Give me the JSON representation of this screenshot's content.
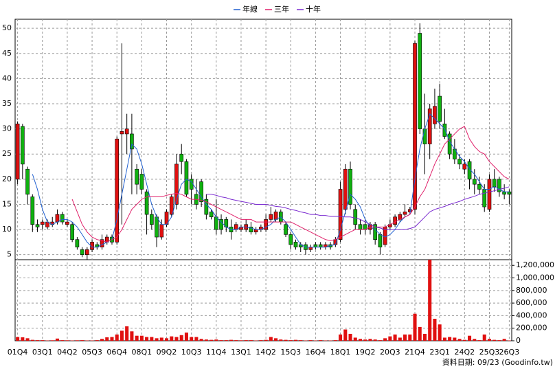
{
  "chart_data": {
    "type": "candlestick",
    "categories": [
      "01Q4",
      null,
      null,
      null,
      null,
      "03Q1",
      null,
      null,
      null,
      null,
      "04Q2",
      null,
      null,
      null,
      null,
      "05Q3",
      null,
      null,
      null,
      null,
      "06Q4",
      null,
      null,
      null,
      null,
      "08Q1",
      null,
      null,
      null,
      null,
      "09Q2",
      null,
      null,
      null,
      null,
      "10Q3",
      null,
      null,
      null,
      null,
      "11Q4",
      null,
      null,
      null,
      null,
      "13Q1",
      null,
      null,
      null,
      null,
      "14Q2",
      null,
      null,
      null,
      null,
      "15Q3",
      null,
      null,
      null,
      null,
      "16Q4",
      null,
      null,
      null,
      null,
      "18Q1",
      null,
      null,
      null,
      null,
      "19Q2",
      null,
      null,
      null,
      null,
      "20Q3",
      null,
      null,
      null,
      null,
      "21Q4",
      null,
      null,
      null,
      null,
      "23Q1",
      null,
      null,
      null,
      null,
      "24Q2",
      null,
      null,
      null,
      null,
      "25Q3",
      null,
      null,
      null,
      "26Q3"
    ],
    "open": [
      20,
      30.5,
      22,
      16.5,
      11,
      11,
      10.5,
      11,
      11.5,
      13,
      11,
      11,
      8,
      6,
      5,
      6,
      7,
      6.5,
      7.5,
      8.5,
      7.5,
      29,
      29,
      29,
      22,
      21,
      17.5,
      13,
      12.5,
      8.5,
      11,
      13,
      15,
      25,
      23.5,
      20,
      17,
      19.5,
      16,
      13.5,
      12.5,
      12,
      12,
      10.5,
      10,
      10,
      10,
      10.5,
      9.5,
      10,
      10,
      12,
      12,
      13.5,
      11,
      9,
      7.5,
      7,
      7,
      6,
      7,
      7,
      6.5,
      7,
      7,
      8,
      14,
      22,
      14,
      11,
      11,
      10,
      11,
      9,
      7,
      10.5,
      11,
      12,
      13,
      13.5,
      14,
      49,
      30,
      27,
      31,
      36.5,
      31,
      29,
      26,
      24,
      22,
      23.5,
      20,
      19,
      18,
      14,
      20,
      20,
      17.5,
      17.5
    ],
    "high": [
      31.5,
      31,
      22.5,
      17,
      12,
      12,
      12,
      12.5,
      14,
      13.5,
      12,
      11.5,
      8.5,
      6.5,
      6.5,
      8,
      7.5,
      9,
      9,
      9,
      28.5,
      47,
      33,
      33,
      23,
      22,
      18,
      14,
      13,
      12,
      14,
      17,
      25,
      27,
      24,
      21,
      20,
      20,
      17,
      14,
      16,
      13,
      12.5,
      12,
      11.5,
      11,
      12,
      11.5,
      10.5,
      11,
      13,
      14.5,
      14,
      14,
      11.5,
      9.5,
      8,
      7.5,
      7.5,
      7,
      7.5,
      7.5,
      7.5,
      7.5,
      8.5,
      19.5,
      23,
      23.5,
      15,
      12,
      12,
      11.5,
      11.5,
      9.5,
      11,
      12,
      13,
      13.5,
      15,
      14.5,
      47.5,
      51,
      37,
      35,
      38,
      39,
      34,
      29.5,
      28,
      25,
      24,
      24,
      22,
      20.5,
      19,
      21,
      22,
      20.5,
      19,
      18
    ],
    "low": [
      19,
      20,
      15,
      9.5,
      9.5,
      10,
      10,
      10.5,
      11,
      11,
      10.5,
      7.5,
      6,
      4.5,
      4,
      5.5,
      6,
      6,
      7,
      7,
      7,
      11,
      25,
      17,
      17,
      17,
      9,
      10,
      6.5,
      8,
      10.5,
      12.5,
      14,
      21,
      16.5,
      15,
      14,
      14.5,
      12,
      12,
      9,
      9,
      9.5,
      8,
      9.5,
      9.5,
      9.5,
      9,
      9,
      9.5,
      9.5,
      11.5,
      11.5,
      11,
      8.5,
      6,
      6,
      5.5,
      5,
      5.5,
      6,
      6,
      6,
      6,
      6.5,
      7.5,
      13,
      14,
      10,
      9,
      9,
      9,
      7,
      5,
      6.5,
      10,
      10.5,
      11.5,
      12.5,
      13,
      13,
      29,
      21,
      24,
      30,
      30,
      28,
      24,
      23,
      22,
      21,
      18,
      17,
      17,
      13.5,
      13.5,
      17.5,
      16.5,
      16,
      15
    ],
    "close": [
      31,
      23,
      17,
      11,
      10.5,
      11.5,
      11.5,
      11.5,
      13,
      11.5,
      11.5,
      8,
      6.5,
      5,
      6,
      7.5,
      6.5,
      8,
      8.5,
      7.5,
      28,
      29.5,
      30,
      26,
      19,
      18,
      13,
      11,
      8.5,
      11,
      13.5,
      16.5,
      23,
      23.5,
      17,
      18,
      15,
      15.5,
      13,
      12.5,
      10,
      10,
      10.5,
      9.5,
      11,
      10.5,
      11,
      9.5,
      10,
      10.5,
      12,
      13,
      13.5,
      11.5,
      9,
      7,
      6.5,
      6.5,
      6,
      6.5,
      6.5,
      6.5,
      7,
      6.5,
      8,
      18,
      22,
      15,
      11,
      10,
      10,
      11,
      8,
      6.5,
      10.5,
      11,
      12.5,
      13,
      13.5,
      14,
      47,
      30,
      27,
      34,
      34.5,
      31.5,
      28.5,
      25,
      24,
      23,
      23,
      20,
      19,
      18,
      14.5,
      20,
      18.5,
      17.5,
      17,
      17
    ],
    "up_color": "#e01010",
    "down_color": "#10b010",
    "lines": [
      {
        "name": "年線",
        "color": "#1f5fd0",
        "values": [
          null,
          null,
          null,
          21,
          18,
          14,
          11.5,
          11,
          11.5,
          12,
          12,
          11.5,
          10.5,
          9,
          7.5,
          6.5,
          6.5,
          7,
          7.5,
          8,
          12,
          17,
          22,
          27,
          26,
          23,
          19,
          15,
          12.5,
          11,
          11,
          12.5,
          16,
          19,
          20,
          19.5,
          18,
          16.5,
          15,
          14,
          12.5,
          11.5,
          10.5,
          10,
          10,
          10.5,
          10.5,
          10.3,
          10,
          10,
          10.5,
          11,
          12,
          12.5,
          11.5,
          10,
          8.5,
          7,
          6.5,
          6.5,
          6.5,
          6.5,
          6.5,
          6.8,
          7,
          10,
          13.5,
          17,
          16,
          14.5,
          12,
          10.5,
          10,
          9,
          8.5,
          9,
          10,
          11.5,
          12.5,
          13,
          20,
          26,
          30,
          33,
          32,
          31,
          30,
          27.5,
          26,
          24.5,
          23.5,
          22,
          21,
          19.5,
          18,
          18,
          18.5,
          18,
          17.5,
          17.5
        ]
      },
      {
        "name": "三年",
        "color": "#e0206a",
        "values": [
          null,
          null,
          null,
          null,
          null,
          null,
          null,
          null,
          null,
          null,
          null,
          16,
          13.5,
          11,
          9.5,
          8.5,
          8,
          7.8,
          7.5,
          8,
          8.5,
          10,
          12,
          14,
          15,
          16,
          16.5,
          16.5,
          16.5,
          16.5,
          16.8,
          17,
          17.2,
          17,
          16.5,
          16,
          16,
          15.8,
          15.5,
          15,
          14.5,
          14,
          13.5,
          13,
          12.5,
          12,
          12,
          12,
          11.5,
          11.5,
          11.5,
          11.5,
          11.5,
          11.5,
          11.5,
          11.5,
          11,
          10.5,
          10,
          9.5,
          9,
          8.5,
          8,
          7.8,
          8,
          8.5,
          9,
          9.5,
          10,
          10,
          10,
          10.5,
          10.5,
          10.5,
          10.5,
          11,
          11.5,
          12,
          12.5,
          13,
          14.5,
          16.5,
          18,
          20.5,
          23,
          25,
          27,
          28,
          29,
          30,
          30.5,
          28,
          26.5,
          25.5,
          25,
          23.5,
          22.5,
          21.5,
          20.5,
          20
        ]
      },
      {
        "name": "十年",
        "color": "#7a2ad0",
        "values": [
          null,
          null,
          null,
          null,
          null,
          null,
          null,
          null,
          null,
          null,
          null,
          null,
          null,
          null,
          null,
          null,
          null,
          null,
          null,
          null,
          null,
          null,
          null,
          null,
          null,
          null,
          null,
          null,
          null,
          null,
          null,
          null,
          null,
          null,
          null,
          null,
          null,
          null,
          17,
          17,
          16.8,
          16.5,
          16.3,
          16,
          15.8,
          15.6,
          15.4,
          15.2,
          15,
          15,
          15,
          14.8,
          14.6,
          14.5,
          14.3,
          14,
          13.8,
          13.5,
          13.3,
          13,
          13,
          12.8,
          12.8,
          12.6,
          12.6,
          12.6,
          12.5,
          12.5,
          12.3,
          12,
          11.5,
          11,
          10.5,
          10.3,
          10,
          10,
          10,
          10,
          10,
          10.2,
          10.5,
          11.5,
          12.5,
          13.5,
          14,
          14.3,
          14.6,
          15,
          15.3,
          15.6,
          16,
          16.3,
          16.6,
          17,
          17.2,
          17.5,
          17.7,
          18,
          18.2,
          18.5
        ]
      }
    ],
    "ylim": [
      4,
      51.8
    ],
    "yticks": [
      5,
      10,
      15,
      20,
      25,
      30,
      35,
      40,
      45,
      50
    ],
    "grid": true,
    "volume": {
      "color": "#e01010",
      "values": [
        60000,
        55000,
        40000,
        15000,
        10000,
        10000,
        5000,
        8000,
        35000,
        10000,
        8000,
        5000,
        8000,
        10000,
        5000,
        5000,
        10000,
        30000,
        55000,
        60000,
        100000,
        160000,
        230000,
        150000,
        80000,
        80000,
        60000,
        60000,
        40000,
        50000,
        40000,
        70000,
        60000,
        90000,
        130000,
        60000,
        60000,
        30000,
        20000,
        15000,
        20000,
        10000,
        10000,
        15000,
        10000,
        8000,
        10000,
        10000,
        5000,
        10000,
        15000,
        60000,
        40000,
        20000,
        15000,
        10000,
        15000,
        10000,
        5000,
        10000,
        5000,
        10000,
        5000,
        5000,
        10000,
        100000,
        180000,
        110000,
        50000,
        30000,
        20000,
        30000,
        20000,
        10000,
        40000,
        70000,
        100000,
        50000,
        100000,
        100000,
        430000,
        220000,
        110000,
        1290000,
        350000,
        260000,
        50000,
        60000,
        50000,
        30000,
        15000,
        80000,
        30000,
        10000,
        100000,
        30000,
        15000,
        10000,
        30000,
        5000
      ],
      "ylim": [
        0,
        1290000
      ],
      "yticks": [
        0,
        {
          "value": 200000,
          "label": "200,000"
        },
        {
          "value": 400000,
          "label": "400,000"
        },
        {
          "value": 600000,
          "label": "600,000"
        },
        {
          "value": 800000,
          "label": "800,000"
        },
        {
          "value": 1000000,
          "label": "1,000,000"
        },
        {
          "value": 1200000,
          "label": "1,200,000"
        }
      ]
    },
    "source": "資料日期: 09/23 (Goodinfo.tw)"
  }
}
